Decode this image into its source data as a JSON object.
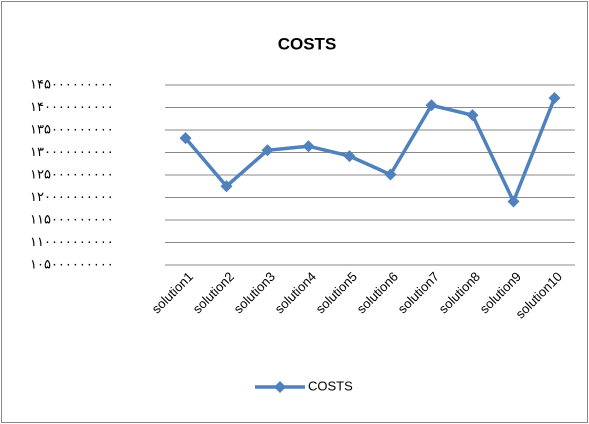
{
  "chart_data": {
    "type": "line",
    "title": "COSTS",
    "categories": [
      "solution1",
      "solution2",
      "solution3",
      "solution4",
      "solution5",
      "solution6",
      "solution7",
      "solution8",
      "solution9",
      "solution10"
    ],
    "series": [
      {
        "name": "COSTS",
        "color": "#4f81bd",
        "values": [
          133200000000,
          122500000000,
          130500000000,
          131400000000,
          129200000000,
          125100000000,
          140500000000,
          138300000000,
          119100000000,
          142100000000
        ]
      }
    ],
    "ylim": [
      105000000000,
      145000000000
    ],
    "yticks": [
      {
        "value": 105000000000,
        "label": "۱۰۵۰۰۰۰۰۰۰۰۰"
      },
      {
        "value": 110000000000,
        "label": "۱۱۰۰۰۰۰۰۰۰۰۰"
      },
      {
        "value": 115000000000,
        "label": "۱۱۵۰۰۰۰۰۰۰۰۰"
      },
      {
        "value": 120000000000,
        "label": "۱۲۰۰۰۰۰۰۰۰۰۰"
      },
      {
        "value": 125000000000,
        "label": "۱۲۵۰۰۰۰۰۰۰۰۰"
      },
      {
        "value": 130000000000,
        "label": "۱۳۰۰۰۰۰۰۰۰۰۰"
      },
      {
        "value": 135000000000,
        "label": "۱۳۵۰۰۰۰۰۰۰۰۰"
      },
      {
        "value": 140000000000,
        "label": "۱۴۰۰۰۰۰۰۰۰۰۰"
      },
      {
        "value": 145000000000,
        "label": "۱۴۵۰۰۰۰۰۰۰۰۰"
      }
    ],
    "grid": true,
    "legend": "bottom"
  }
}
